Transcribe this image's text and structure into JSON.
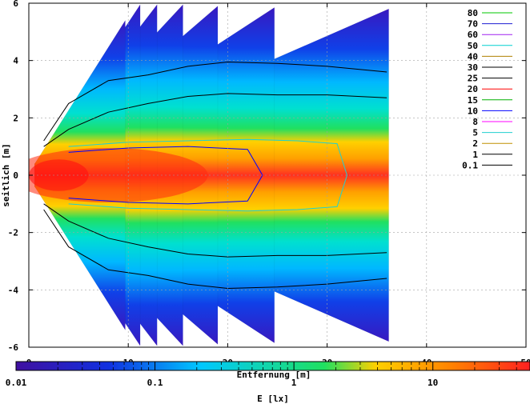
{
  "chart_data": {
    "type": "heatmap",
    "title": "",
    "xlabel": "Entfernung [m]",
    "ylabel": "seitlich [m]",
    "xlim": [
      0,
      50
    ],
    "ylim": [
      -6,
      6
    ],
    "x_ticks": [
      "0",
      "10",
      "20",
      "30",
      "40",
      "50"
    ],
    "y_ticks": [
      "-6",
      "-4",
      "-2",
      "0",
      "2",
      "4",
      "6"
    ],
    "grid": true,
    "legend_position": "top-right",
    "contour_levels": [
      {
        "name": "80",
        "color": "#00c800",
        "value": 80
      },
      {
        "name": "70",
        "color": "#1e1ed2",
        "value": 70
      },
      {
        "name": "60",
        "color": "#a020f0",
        "value": 60
      },
      {
        "name": "50",
        "color": "#00d0d0",
        "value": 50
      },
      {
        "name": "40",
        "color": "#b08000",
        "value": 40
      },
      {
        "name": "30",
        "color": "#000000",
        "value": 30
      },
      {
        "name": "25",
        "color": "#000000",
        "value": 25
      },
      {
        "name": "20",
        "color": "#ff0000",
        "value": 20
      },
      {
        "name": "15",
        "color": "#00b000",
        "value": 15
      },
      {
        "name": "10",
        "color": "#0000ff",
        "value": 10
      },
      {
        "name": "8",
        "color": "#ff00ff",
        "value": 8
      },
      {
        "name": "5",
        "color": "#20d0d0",
        "value": 5
      },
      {
        "name": "2",
        "color": "#c09000",
        "value": 2
      },
      {
        "name": "1",
        "color": "#000000",
        "value": 1
      },
      {
        "name": "0.1",
        "color": "#000000",
        "value": 0.1
      }
    ],
    "colorbar": {
      "label": "E [lx]",
      "scale": "log",
      "range": [
        0.01,
        50
      ],
      "tick_labels": [
        "0.01",
        "0.1",
        "1",
        "10"
      ],
      "tick_values": [
        0.01,
        0.1,
        1,
        10
      ],
      "colors": [
        "#4010a0",
        "#1030e0",
        "#00c8ff",
        "#20e060",
        "#ffd000",
        "#ff2020"
      ]
    },
    "sectors": [
      {
        "x_end": 9.7,
        "y_half": 5.4
      },
      {
        "x_end": 11.2,
        "y_half": 5.95
      },
      {
        "x_end": 12.9,
        "y_half": 5.95
      },
      {
        "x_end": 15.5,
        "y_half": 5.95
      },
      {
        "x_end": 19.0,
        "y_half": 5.9
      },
      {
        "x_end": 24.7,
        "y_half": 5.85
      },
      {
        "x_end": 36.2,
        "y_half": 5.8
      }
    ],
    "isolux_lines": [
      {
        "level": 0.1,
        "points": [
          [
            1.5,
            1.2
          ],
          [
            4,
            2.5
          ],
          [
            8,
            3.3
          ],
          [
            12,
            3.5
          ],
          [
            16,
            3.8
          ],
          [
            20,
            3.95
          ],
          [
            25,
            3.9
          ],
          [
            30,
            3.8
          ],
          [
            36,
            3.6
          ]
        ]
      },
      {
        "level": 1,
        "points": [
          [
            1.5,
            1.0
          ],
          [
            4,
            1.6
          ],
          [
            8,
            2.2
          ],
          [
            12,
            2.5
          ],
          [
            16,
            2.75
          ],
          [
            20,
            2.85
          ],
          [
            25,
            2.8
          ],
          [
            30,
            2.8
          ],
          [
            36,
            2.7
          ]
        ]
      },
      {
        "level": 5,
        "points": [
          [
            4,
            1.0
          ],
          [
            10,
            1.15
          ],
          [
            16,
            1.2
          ],
          [
            22,
            1.25
          ],
          [
            27,
            1.2
          ],
          [
            31,
            1.1
          ],
          [
            32,
            0
          ],
          [
            31,
            -1.1
          ],
          [
            27,
            -1.2
          ],
          [
            22,
            -1.25
          ],
          [
            16,
            -1.2
          ],
          [
            10,
            -1.15
          ],
          [
            4,
            -1.0
          ]
        ]
      },
      {
        "level": 10,
        "points": [
          [
            4,
            0.8
          ],
          [
            10,
            0.95
          ],
          [
            16,
            1.0
          ],
          [
            22,
            0.9
          ],
          [
            23.5,
            0
          ],
          [
            22,
            -0.9
          ],
          [
            16,
            -1.0
          ],
          [
            10,
            -0.95
          ],
          [
            4,
            -0.8
          ]
        ]
      }
    ]
  }
}
